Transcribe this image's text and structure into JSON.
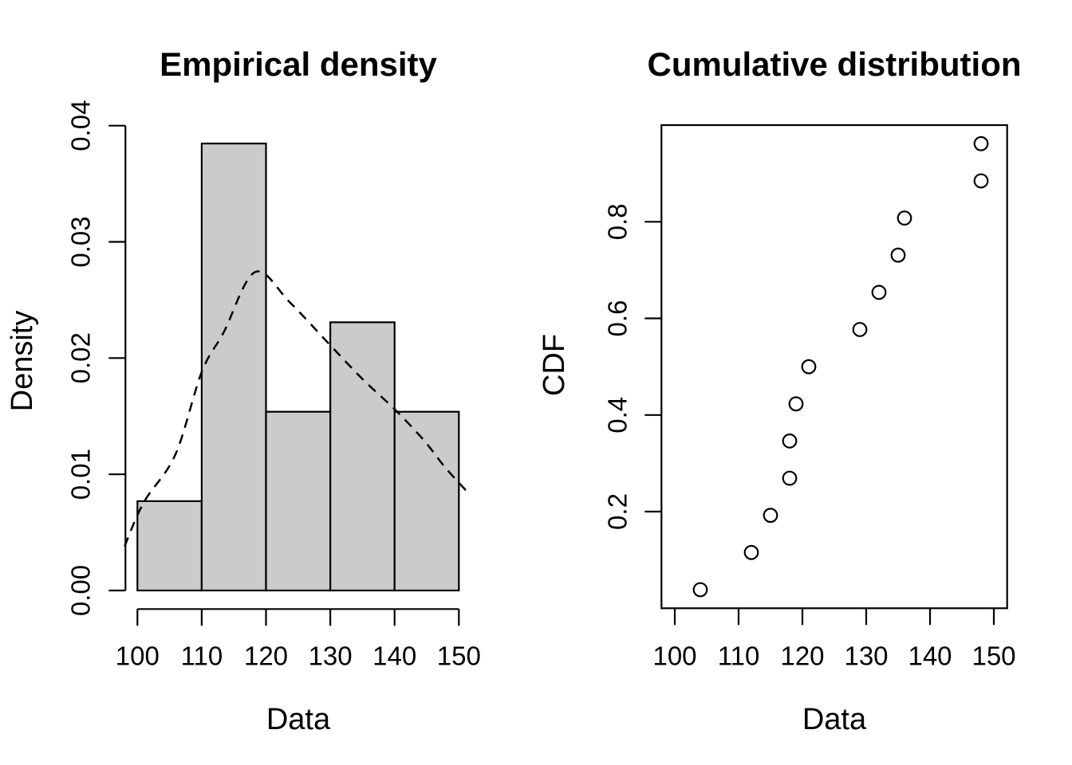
{
  "figure": {
    "background": "#ffffff",
    "text_color": "#000000"
  },
  "chart_data": [
    {
      "type": "bar",
      "panel": "left",
      "title": "Empirical density",
      "xlabel": "Data",
      "ylabel": "Density",
      "xlim": [
        98,
        152
      ],
      "ylim": [
        0,
        0.04
      ],
      "grid": false,
      "frame": "axes-only",
      "xticks": {
        "values": [
          100,
          110,
          120,
          130,
          140,
          150
        ],
        "labels": [
          "100",
          "110",
          "120",
          "130",
          "140",
          "150"
        ]
      },
      "yticks": {
        "values": [
          0,
          0.01,
          0.02,
          0.03,
          0.04
        ],
        "labels": [
          "0.00",
          "0.01",
          "0.02",
          "0.03",
          "0.04"
        ]
      },
      "bars": {
        "fill": "#cbcbcb",
        "stroke": "#000000",
        "bin_edges": [
          100,
          110,
          120,
          130,
          140,
          150
        ],
        "densities": [
          0.00769,
          0.03846,
          0.01538,
          0.02308,
          0.01538
        ]
      },
      "density_curve": {
        "style": "dashed",
        "color": "#000000",
        "points": [
          [
            98.0,
            0.0038
          ],
          [
            101.0,
            0.0076
          ],
          [
            105.9,
            0.0117
          ],
          [
            110.0,
            0.0188
          ],
          [
            113.4,
            0.0222
          ],
          [
            118.3,
            0.0274
          ],
          [
            123.7,
            0.0248
          ],
          [
            130.0,
            0.0211
          ],
          [
            135.0,
            0.0182
          ],
          [
            140.0,
            0.0156
          ],
          [
            144.6,
            0.0129
          ],
          [
            148.0,
            0.0105
          ],
          [
            151.8,
            0.0082
          ]
        ]
      }
    },
    {
      "type": "scatter",
      "panel": "right",
      "title": "Cumulative distribution",
      "xlabel": "Data",
      "ylabel": "CDF",
      "xlim": [
        98,
        152
      ],
      "ylim": [
        0,
        1
      ],
      "grid": false,
      "frame": "box",
      "xticks": {
        "values": [
          100,
          110,
          120,
          130,
          140,
          150
        ],
        "labels": [
          "100",
          "110",
          "120",
          "130",
          "140",
          "150"
        ]
      },
      "yticks": {
        "values": [
          0.2,
          0.4,
          0.6,
          0.8
        ],
        "labels": [
          "0.2",
          "0.4",
          "0.6",
          "0.8"
        ]
      },
      "marker": {
        "shape": "open-circle",
        "color": "#000000"
      },
      "points": [
        [
          104,
          0.0385
        ],
        [
          112,
          0.1154
        ],
        [
          115,
          0.1923
        ],
        [
          118,
          0.2692
        ],
        [
          118,
          0.3462
        ],
        [
          119,
          0.4231
        ],
        [
          121,
          0.5
        ],
        [
          129,
          0.5769
        ],
        [
          132,
          0.6538
        ],
        [
          135,
          0.7308
        ],
        [
          136,
          0.8077
        ],
        [
          148,
          0.8846
        ],
        [
          148,
          0.9615
        ]
      ]
    }
  ]
}
